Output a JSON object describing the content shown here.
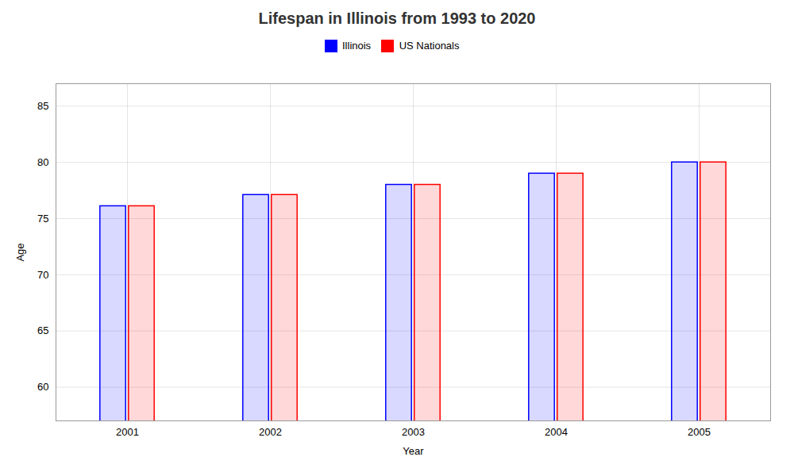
{
  "chart_data": {
    "type": "bar",
    "title": "Lifespan in Illinois from 1993 to 2020",
    "xlabel": "Year",
    "ylabel": "Age",
    "categories": [
      "2001",
      "2002",
      "2003",
      "2004",
      "2005"
    ],
    "series": [
      {
        "name": "Illinois",
        "color": "#0000ff",
        "values": [
          76.1,
          77.1,
          78.0,
          79.0,
          80.0
        ]
      },
      {
        "name": "US Nationals",
        "color": "#ff0000",
        "values": [
          76.1,
          77.1,
          78.0,
          79.0,
          80.0
        ]
      }
    ],
    "ylim": [
      57,
      87
    ],
    "yticks": [
      60,
      65,
      70,
      75,
      80,
      85
    ],
    "grid": true,
    "legend": "top"
  }
}
